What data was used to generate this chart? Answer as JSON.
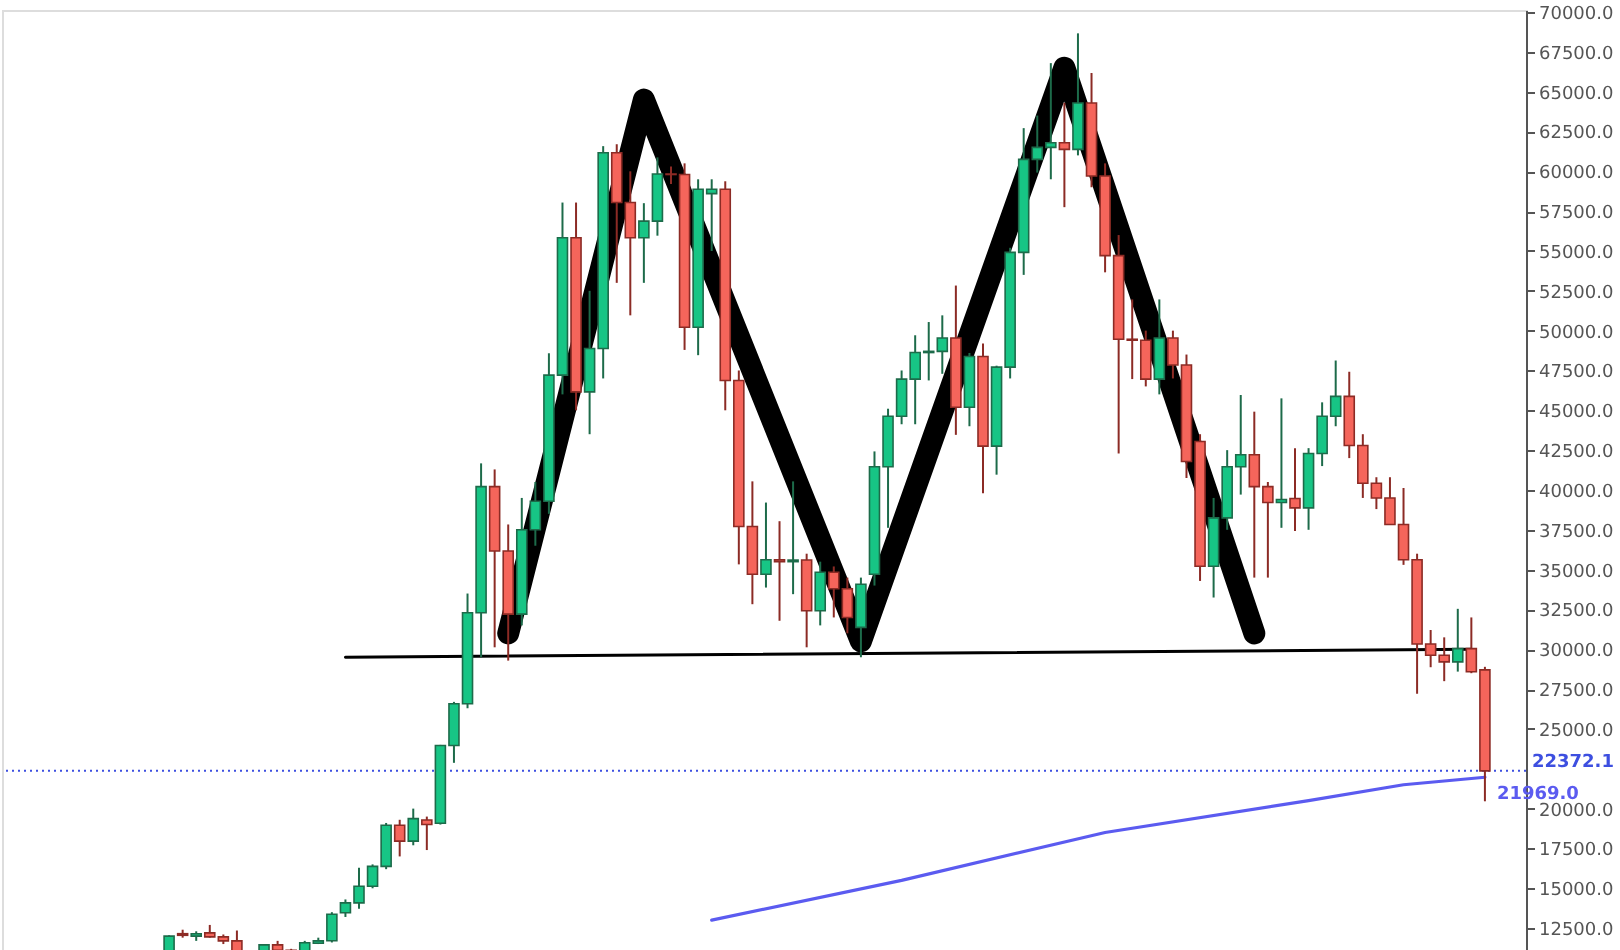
{
  "chart_data": {
    "type": "candlestick",
    "categories": [
      null,
      null,
      null,
      null,
      null,
      null,
      null,
      null,
      null,
      null,
      null,
      null,
      null,
      null,
      null,
      null,
      null,
      null,
      null,
      null,
      null,
      null,
      null,
      null,
      null,
      null,
      null,
      null,
      null,
      null,
      null,
      null,
      null,
      null,
      null,
      null,
      null,
      null,
      null,
      null,
      null,
      null,
      null,
      null,
      null,
      null,
      null,
      null,
      null,
      null,
      null,
      null,
      null,
      null,
      null,
      null,
      null,
      null,
      null,
      null,
      null,
      null,
      null,
      null,
      null,
      null,
      null,
      null,
      null,
      null,
      null,
      null,
      null,
      null,
      null,
      null,
      null,
      null,
      null,
      null,
      null,
      null,
      null,
      null,
      null,
      null,
      null,
      null,
      null,
      null,
      null,
      null,
      null,
      null,
      null,
      null,
      null,
      null
    ],
    "ohlc": [
      [
        10900,
        12050,
        10850,
        12000
      ],
      [
        12150,
        12400,
        11900,
        12050
      ],
      [
        12000,
        12300,
        11700,
        12150
      ],
      [
        12200,
        12700,
        11900,
        11950
      ],
      [
        11950,
        12100,
        11500,
        11700
      ],
      [
        11700,
        12350,
        10800,
        10800
      ],
      null,
      [
        10800,
        11500,
        10800,
        11450
      ],
      [
        11450,
        11700,
        10900,
        11100
      ],
      [
        11100,
        11200,
        10800,
        10850
      ],
      [
        10850,
        11700,
        10800,
        11580
      ],
      [
        11550,
        11900,
        11500,
        11700
      ],
      [
        11710,
        13500,
        11600,
        13375
      ],
      [
        13460,
        14300,
        13200,
        14085
      ],
      [
        14085,
        16290,
        13710,
        15125
      ],
      [
        15125,
        16500,
        15000,
        16375
      ],
      [
        16375,
        19100,
        16200,
        18960
      ],
      [
        18960,
        19300,
        17000,
        17960
      ],
      [
        17960,
        20000,
        17700,
        19375
      ],
      [
        19290,
        19500,
        17400,
        19000
      ],
      [
        19085,
        24000,
        19000,
        23960
      ],
      [
        23960,
        26700,
        22875,
        26585
      ],
      [
        26585,
        33500,
        26300,
        32290
      ],
      [
        32290,
        41670,
        29500,
        40210
      ],
      [
        40210,
        41290,
        30125,
        36170
      ],
      [
        36170,
        37835,
        29290,
        32210
      ],
      [
        32210,
        39500,
        31500,
        37500
      ],
      [
        37500,
        40500,
        36500,
        39290
      ],
      [
        39290,
        48580,
        38500,
        47210
      ],
      [
        47210,
        58040,
        46000,
        55830
      ],
      [
        55830,
        58040,
        45000,
        46160
      ],
      [
        46160,
        52500,
        43500,
        48875
      ],
      [
        48875,
        61580,
        47000,
        61170
      ],
      [
        61170,
        61700,
        53000,
        58040
      ],
      [
        58040,
        60000,
        50960,
        55830
      ],
      [
        55830,
        58000,
        53000,
        56875
      ],
      [
        56875,
        60875,
        55960,
        59830
      ],
      [
        59830,
        60300,
        59200,
        59800
      ],
      [
        59800,
        60500,
        48790,
        50210
      ],
      [
        50210,
        59500,
        48460,
        58875
      ],
      [
        58600,
        59500,
        55000,
        58875
      ],
      [
        58875,
        59375,
        45000,
        46875
      ],
      [
        46875,
        47500,
        35330,
        37710
      ],
      [
        37710,
        40540,
        32830,
        34710
      ],
      [
        34710,
        39210,
        33875,
        35625
      ],
      [
        35625,
        38040,
        31790,
        35500
      ],
      [
        35500,
        40540,
        33460,
        35600
      ],
      [
        35600,
        36000,
        30125,
        32420
      ],
      [
        32420,
        35500,
        31500,
        34840
      ],
      [
        34840,
        35200,
        32000,
        33800
      ],
      [
        33800,
        34500,
        31000,
        32000
      ],
      [
        31375,
        34500,
        29500,
        34085
      ],
      [
        34710,
        42420,
        34000,
        41460
      ],
      [
        41460,
        45100,
        37625,
        44625
      ],
      [
        44625,
        47500,
        44125,
        46960
      ],
      [
        46960,
        49710,
        44125,
        48625
      ],
      [
        48625,
        50540,
        46875,
        48700
      ],
      [
        48700,
        50960,
        47290,
        49540
      ],
      [
        49540,
        52830,
        43460,
        45190
      ],
      [
        45190,
        48600,
        44000,
        48375
      ],
      [
        48375,
        49200,
        39790,
        42750
      ],
      [
        42750,
        47800,
        40960,
        47710
      ],
      [
        47710,
        55200,
        47000,
        54915
      ],
      [
        54915,
        62710,
        53500,
        60750
      ],
      [
        60750,
        63500,
        59920,
        61500
      ],
      [
        61500,
        66790,
        59500,
        61790
      ],
      [
        61790,
        64300,
        57750,
        61375
      ],
      [
        61375,
        68660,
        61000,
        64290
      ],
      [
        64290,
        66170,
        59000,
        59710
      ],
      [
        59710,
        60500,
        53660,
        54710
      ],
      [
        54710,
        56000,
        42290,
        49460
      ],
      [
        49460,
        51960,
        46960,
        49400
      ],
      [
        49400,
        50000,
        46500,
        46960
      ],
      [
        46960,
        51960,
        46000,
        49540
      ],
      [
        49540,
        50000,
        47000,
        47840
      ],
      [
        47840,
        48500,
        40750,
        41790
      ],
      [
        43040,
        43500,
        34290,
        35210
      ],
      [
        35210,
        39500,
        33250,
        38250
      ],
      [
        38250,
        42500,
        37500,
        41460
      ],
      [
        41460,
        45960,
        39710,
        42210
      ],
      [
        42210,
        44915,
        34500,
        40210
      ],
      [
        40210,
        40500,
        34500,
        39210
      ],
      [
        39210,
        45750,
        37625,
        39400
      ],
      [
        39460,
        42625,
        37420,
        38875
      ],
      [
        38875,
        42625,
        37500,
        42290
      ],
      [
        42290,
        45500,
        41500,
        44625
      ],
      [
        44625,
        48125,
        44000,
        45875
      ],
      [
        45875,
        47420,
        42000,
        42790
      ],
      [
        42790,
        43500,
        39500,
        40420
      ],
      [
        40420,
        40800,
        38800,
        39500
      ],
      [
        39500,
        40800,
        37800,
        37835
      ],
      [
        37835,
        40125,
        35300,
        35625
      ],
      [
        35625,
        36000,
        27210,
        30335
      ],
      [
        30335,
        31210,
        28875,
        29625
      ],
      [
        29625,
        30750,
        28000,
        29210
      ],
      [
        29210,
        32540,
        28600,
        30040
      ],
      [
        30040,
        32000,
        28500,
        28590
      ],
      [
        28710,
        28900,
        20460,
        22372.1
      ]
    ],
    "series": [
      {
        "type": "line",
        "color": "#000000",
        "values": [
          null,
          null,
          null,
          null,
          null,
          null,
          null,
          null,
          null,
          null,
          null,
          null,
          null,
          null,
          null,
          null,
          null,
          null,
          null,
          null,
          null,
          null,
          null,
          null,
          null,
          31000,
          null,
          null,
          null,
          null,
          null,
          null,
          null,
          null,
          null,
          64500,
          null,
          null,
          null,
          null,
          null,
          null,
          null,
          null,
          null,
          null,
          null,
          null,
          null,
          null,
          null,
          30500,
          null,
          null,
          null,
          null,
          null,
          null,
          null,
          null,
          null,
          null,
          null,
          null,
          null,
          null,
          66500,
          null,
          null,
          null,
          null,
          null,
          null,
          null,
          null,
          null,
          null,
          null,
          null,
          null,
          31000,
          null,
          null,
          null,
          null,
          null,
          null,
          null,
          null,
          null,
          null,
          null,
          null,
          null,
          null,
          null,
          null,
          null
        ]
      },
      {
        "type": "line",
        "color": "#000000",
        "values": [
          null,
          null,
          null,
          null,
          null,
          null,
          null,
          null,
          null,
          null,
          null,
          null,
          null,
          29500,
          null,
          null,
          null,
          null,
          null,
          null,
          null,
          null,
          null,
          null,
          null,
          null,
          null,
          null,
          null,
          null,
          null,
          null,
          null,
          null,
          null,
          null,
          null,
          null,
          null,
          null,
          null,
          null,
          null,
          null,
          null,
          null,
          null,
          null,
          null,
          null,
          null,
          null,
          null,
          null,
          null,
          null,
          null,
          null,
          null,
          null,
          null,
          null,
          null,
          null,
          null,
          null,
          null,
          null,
          null,
          null,
          null,
          null,
          null,
          null,
          null,
          null,
          null,
          null,
          null,
          null,
          null,
          null,
          null,
          null,
          null,
          null,
          null,
          null,
          null,
          null,
          null,
          null,
          null,
          null,
          null,
          null,
          30000,
          null
        ]
      },
      {
        "type": "line",
        "color": "#5b5bf0",
        "values": [
          null,
          null,
          null,
          null,
          null,
          null,
          null,
          null,
          null,
          null,
          null,
          null,
          null,
          null,
          null,
          null,
          null,
          null,
          null,
          null,
          null,
          null,
          null,
          null,
          null,
          null,
          null,
          null,
          null,
          null,
          null,
          null,
          null,
          null,
          null,
          null,
          null,
          null,
          null,
          null,
          13000,
          null,
          null,
          null,
          null,
          null,
          null,
          null,
          null,
          null,
          null,
          null,
          null,
          null,
          15500,
          null,
          null,
          null,
          null,
          null,
          null,
          null,
          null,
          null,
          null,
          null,
          null,
          null,
          null,
          18500,
          null,
          null,
          null,
          null,
          null,
          null,
          null,
          null,
          null,
          null,
          null,
          null,
          null,
          null,
          20500,
          null,
          null,
          null,
          null,
          null,
          null,
          21500,
          null,
          null,
          null,
          null,
          null,
          21969.0
        ],
        "value_labels": [
          null,
          null,
          null,
          null,
          null,
          null,
          null,
          null,
          null,
          null,
          null,
          null,
          null,
          null,
          null,
          null,
          null,
          null,
          null,
          null,
          null,
          null,
          null,
          null,
          null,
          null,
          null,
          null,
          null,
          null,
          null,
          null,
          null,
          null,
          null,
          null,
          null,
          null,
          null,
          null,
          null,
          null,
          null,
          null,
          null,
          null,
          null,
          null,
          null,
          null,
          null,
          null,
          null,
          null,
          null,
          null,
          null,
          null,
          null,
          null,
          null,
          null,
          null,
          null,
          null,
          null,
          null,
          null,
          null,
          null,
          null,
          null,
          null,
          null,
          null,
          null,
          null,
          null,
          null,
          null,
          null,
          null,
          null,
          null,
          null,
          null,
          null,
          null,
          null,
          null,
          null,
          null,
          null,
          null,
          null,
          null,
          null,
          "21969.0"
        ]
      }
    ],
    "ylim": [
      10750,
      70125
    ],
    "yticks": [
      {
        "value": 12500,
        "label": "12500.0"
      },
      {
        "value": 15000,
        "label": "15000.0"
      },
      {
        "value": 17500,
        "label": "17500.0"
      },
      {
        "value": 20000,
        "label": "20000.0"
      },
      {
        "value": 25000,
        "label": "25000.0"
      },
      {
        "value": 27500,
        "label": "27500.0"
      },
      {
        "value": 30000,
        "label": "30000.0"
      },
      {
        "value": 32500,
        "label": "32500.0"
      },
      {
        "value": 35000,
        "label": "35000.0"
      },
      {
        "value": 37500,
        "label": "37500.0"
      },
      {
        "value": 40000,
        "label": "40000.0"
      },
      {
        "value": 42500,
        "label": "42500.0"
      },
      {
        "value": 45000,
        "label": "45000.0"
      },
      {
        "value": 47500,
        "label": "47500.0"
      },
      {
        "value": 50000,
        "label": "50000.0"
      },
      {
        "value": 52500,
        "label": "52500.0"
      },
      {
        "value": 55000,
        "label": "55000.0"
      },
      {
        "value": 57500,
        "label": "57500.0"
      },
      {
        "value": 60000,
        "label": "60000.0"
      },
      {
        "value": 62500,
        "label": "62500.0"
      },
      {
        "value": 65000,
        "label": "65000.0"
      },
      {
        "value": 67500,
        "label": "67500.0"
      },
      {
        "value": 70000,
        "label": "70000.0"
      }
    ],
    "ref_lines": [
      {
        "axis": "y",
        "value": 22372.1,
        "label": "22372.1",
        "color": "#3d4fe0",
        "line_style": "dotted"
      }
    ],
    "grid": false
  }
}
